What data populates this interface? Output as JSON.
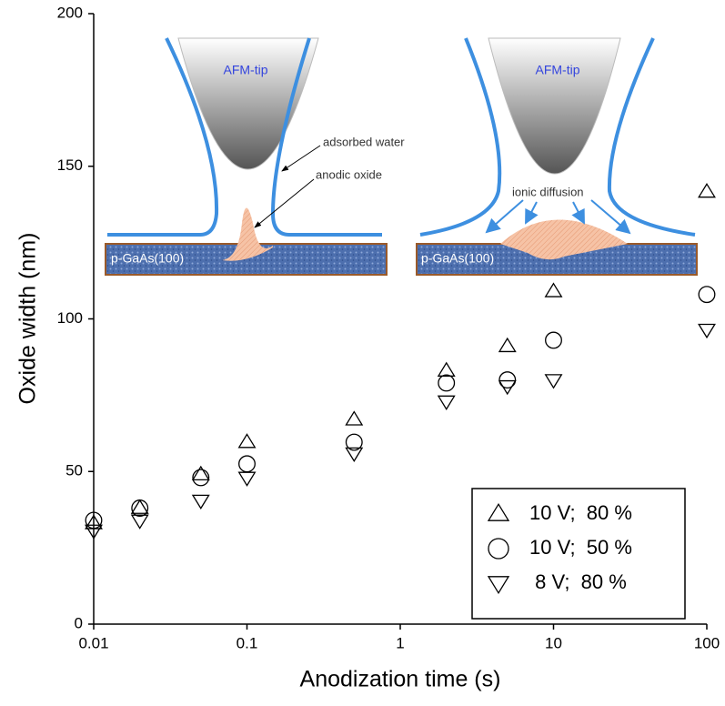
{
  "chart_data": {
    "type": "scatter",
    "x_label": "Anodization time (s)",
    "y_label": "Oxide width (nm)",
    "x_scale": "log",
    "x": [
      0.01,
      0.02,
      0.05,
      0.1,
      0.5,
      2,
      5,
      10,
      100
    ],
    "series": [
      {
        "name": "10 V;  80 %",
        "marker": "triangle-up",
        "color": "#000000",
        "values": [
          33,
          38,
          49,
          59.6,
          67,
          83,
          91,
          109,
          141.6
        ]
      },
      {
        "name": "10 V;  50 %",
        "marker": "circle",
        "color": "#000000",
        "values": [
          34,
          38,
          48,
          52.5,
          59.6,
          79,
          80,
          93,
          108
        ]
      },
      {
        "name": " 8 V;  80 %",
        "marker": "triangle-down",
        "color": "#000000",
        "values": [
          30.7,
          34,
          40.5,
          48,
          56,
          73,
          78,
          80,
          96.5
        ]
      }
    ],
    "xlim": [
      0.01,
      100
    ],
    "xticks": [
      0.01,
      0.1,
      1,
      10,
      100
    ],
    "ylim": [
      0,
      200
    ],
    "yticks": [
      0,
      50,
      100,
      150,
      200
    ],
    "legend": "lower-right",
    "annotations": [
      "AFM-tip",
      "adsorbed water",
      "anodic oxide",
      "p-GaAs(100)",
      "AFM-tip",
      "ionic diffusion",
      "p-GaAs(100)"
    ]
  }
}
